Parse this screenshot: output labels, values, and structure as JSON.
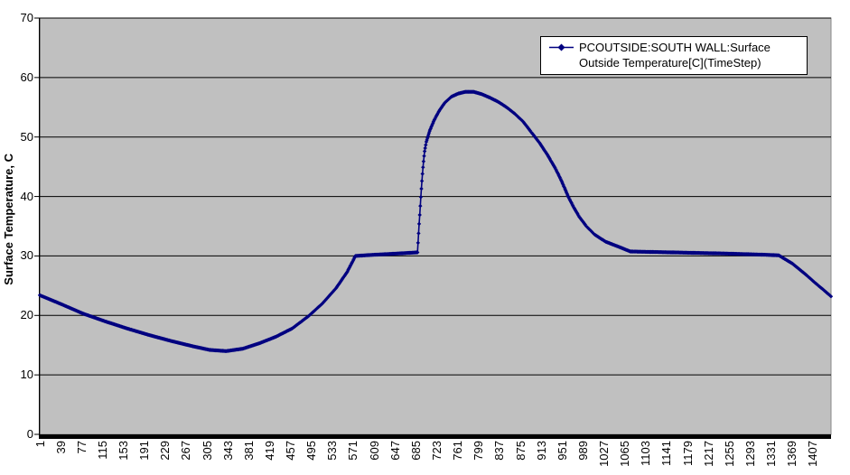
{
  "chart_data": {
    "type": "line",
    "title": "",
    "xlabel": "",
    "ylabel": "Surface Temperature, C",
    "ylim": [
      0,
      70
    ],
    "yticks": [
      0,
      10,
      20,
      30,
      40,
      50,
      60,
      70
    ],
    "xlim": [
      1,
      1440
    ],
    "x_tick_step": 38,
    "x_tick_labels": [
      "1",
      "39",
      "77",
      "115",
      "153",
      "191",
      "229",
      "267",
      "305",
      "343",
      "381",
      "419",
      "457",
      "495",
      "533",
      "571",
      "609",
      "647",
      "685",
      "723",
      "761",
      "799",
      "837",
      "875",
      "913",
      "951",
      "989",
      "1027",
      "1065",
      "1103",
      "1141",
      "1179",
      "1217",
      "1255",
      "1293",
      "1331",
      "1369",
      "1407"
    ],
    "grid": "horizontal",
    "legend_position": "top-right-inside",
    "plot_bg": "#C0C0C0",
    "grid_color": "#000000",
    "axis_color": "#000000",
    "series": [
      {
        "name": "PCOUTSIDE:SOUTH WALL:Surface Outside Temperature[C](TimeStep)",
        "color": "#000080",
        "marker": "diamond",
        "keypoints": [
          [
            1,
            23.4
          ],
          [
            40,
            21.9
          ],
          [
            80,
            20.3
          ],
          [
            120,
            19.0
          ],
          [
            160,
            17.8
          ],
          [
            200,
            16.7
          ],
          [
            240,
            15.7
          ],
          [
            280,
            14.8
          ],
          [
            310,
            14.2
          ],
          [
            340,
            14.0
          ],
          [
            370,
            14.4
          ],
          [
            400,
            15.3
          ],
          [
            430,
            16.4
          ],
          [
            460,
            17.8
          ],
          [
            490,
            19.9
          ],
          [
            515,
            22.0
          ],
          [
            540,
            24.6
          ],
          [
            560,
            27.3
          ],
          [
            575,
            30.0
          ],
          [
            600,
            30.15
          ],
          [
            630,
            30.3
          ],
          [
            660,
            30.45
          ],
          [
            688,
            30.6
          ],
          [
            689,
            32.2
          ],
          [
            690,
            33.8
          ],
          [
            691,
            35.4
          ],
          [
            692,
            36.9
          ],
          [
            693,
            38.4
          ],
          [
            694,
            39.9
          ],
          [
            695,
            41.3
          ],
          [
            696,
            42.6
          ],
          [
            697,
            43.8
          ],
          [
            698,
            44.9
          ],
          [
            699,
            45.9
          ],
          [
            700,
            46.8
          ],
          [
            701,
            47.6
          ],
          [
            704,
            49.2
          ],
          [
            710,
            51.0
          ],
          [
            718,
            52.8
          ],
          [
            728,
            54.5
          ],
          [
            738,
            55.8
          ],
          [
            750,
            56.8
          ],
          [
            762,
            57.3
          ],
          [
            775,
            57.6
          ],
          [
            790,
            57.6
          ],
          [
            805,
            57.2
          ],
          [
            820,
            56.6
          ],
          [
            835,
            55.9
          ],
          [
            850,
            55.0
          ],
          [
            865,
            53.9
          ],
          [
            880,
            52.6
          ],
          [
            895,
            50.8
          ],
          [
            910,
            49.0
          ],
          [
            925,
            46.9
          ],
          [
            940,
            44.5
          ],
          [
            950,
            42.6
          ],
          [
            962,
            40.0
          ],
          [
            972,
            38.2
          ],
          [
            982,
            36.6
          ],
          [
            995,
            35.0
          ],
          [
            1010,
            33.6
          ],
          [
            1030,
            32.4
          ],
          [
            1055,
            31.5
          ],
          [
            1075,
            30.75
          ],
          [
            1150,
            30.6
          ],
          [
            1250,
            30.4
          ],
          [
            1320,
            30.2
          ],
          [
            1345,
            30.1
          ],
          [
            1370,
            28.7
          ],
          [
            1395,
            26.8
          ],
          [
            1412,
            25.4
          ],
          [
            1425,
            24.4
          ],
          [
            1435,
            23.6
          ],
          [
            1440,
            23.2
          ]
        ]
      }
    ]
  }
}
